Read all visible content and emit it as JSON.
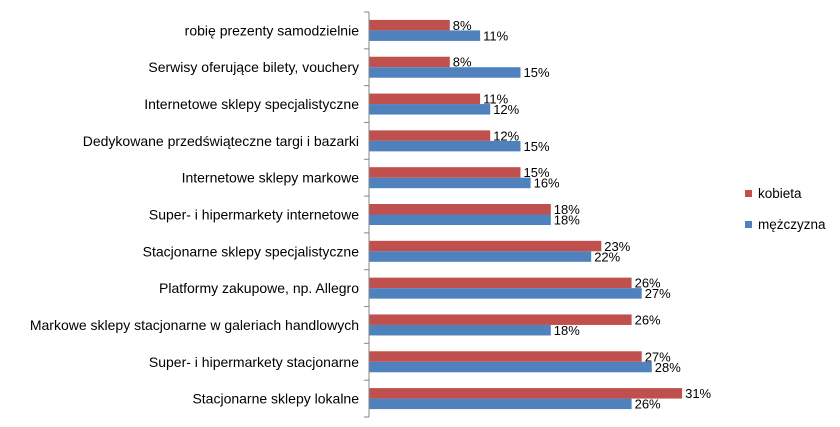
{
  "chart_data": {
    "type": "bar",
    "orientation": "horizontal",
    "categories": [
      "robię prezenty samodzielnie",
      "Serwisy oferujące bilety, vouchery",
      "Internetowe sklepy specjalistyczne",
      "Dedykowane przedświąteczne targi i bazarki",
      "Internetowe sklepy markowe",
      "Super- i hipermarkety internetowe",
      "Stacjonarne sklepy specjalistyczne",
      "Platformy zakupowe, np. Allegro",
      "Markowe sklepy stacjonarne w galeriach handlowych",
      "Super- i hipermarkety stacjonarne",
      "Stacjonarne sklepy lokalne"
    ],
    "series": [
      {
        "name": "kobieta",
        "color": "#c0504d",
        "values": [
          8,
          8,
          11,
          12,
          15,
          18,
          23,
          26,
          26,
          27,
          31
        ],
        "labels": [
          "8%",
          "8%",
          "11%",
          "12%",
          "15%",
          "18%",
          "23%",
          "26%",
          "26%",
          "27%",
          "31%"
        ]
      },
      {
        "name": "mężczyzna",
        "color": "#4f81bd",
        "values": [
          11,
          15,
          12,
          15,
          16,
          18,
          22,
          27,
          18,
          28,
          26
        ],
        "labels": [
          "11%",
          "15%",
          "12%",
          "15%",
          "16%",
          "18%",
          "22%",
          "27%",
          "18%",
          "28%",
          "26%"
        ]
      }
    ],
    "xlim": [
      0,
      35
    ],
    "grid": false,
    "legend": "right",
    "title": "",
    "xlabel": "",
    "ylabel": ""
  }
}
